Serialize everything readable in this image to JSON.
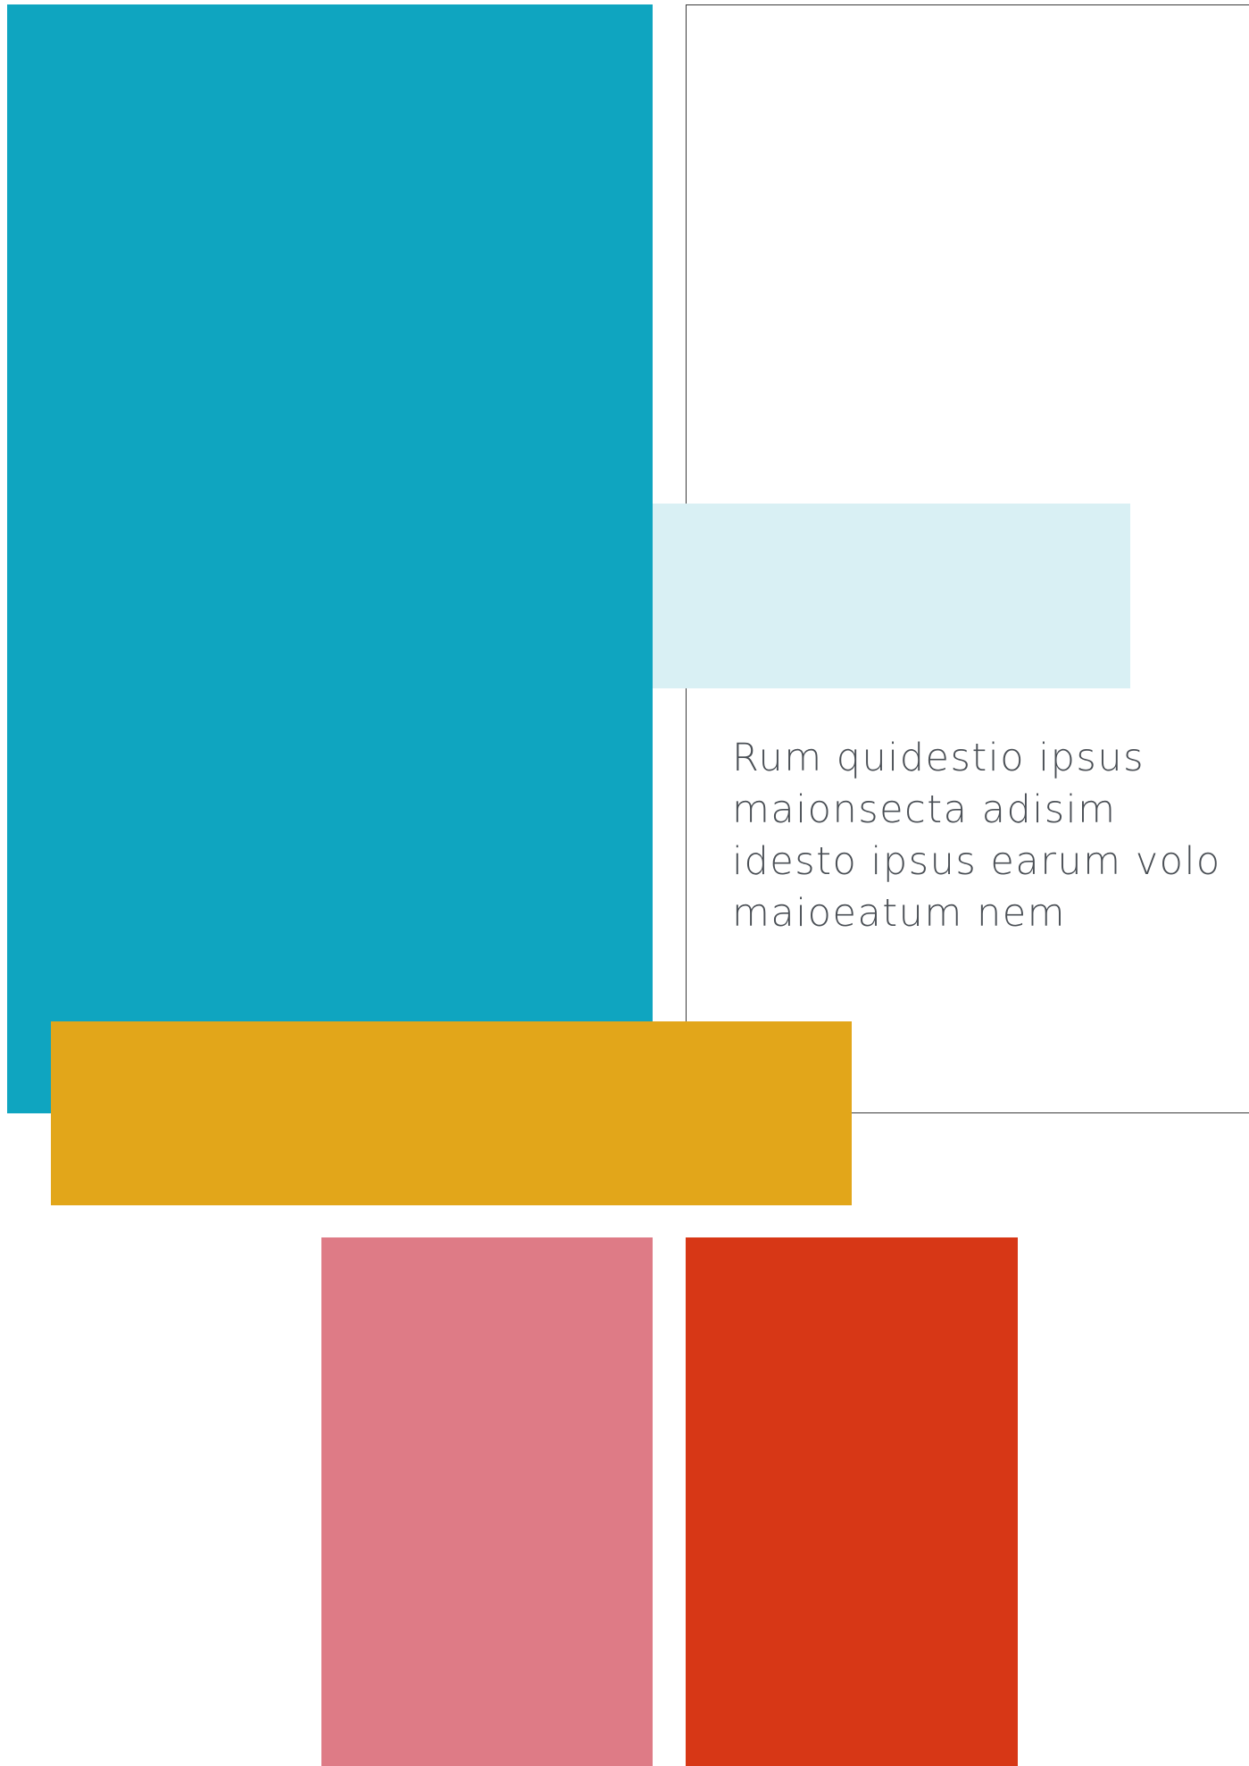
{
  "colors": {
    "teal": "#0fa5c0",
    "light_teal": "#d9f0f4",
    "gold": "#e2a61a",
    "pink": "#de7b86",
    "red": "#d73716",
    "frame_line": "#3a3a3a",
    "text": "#4a4f55"
  },
  "text_block": {
    "lines": [
      "Rum quidestio ipsus",
      "maionsecta adisim",
      "idesto ipsus earum volo",
      "maioeatum nem"
    ]
  }
}
